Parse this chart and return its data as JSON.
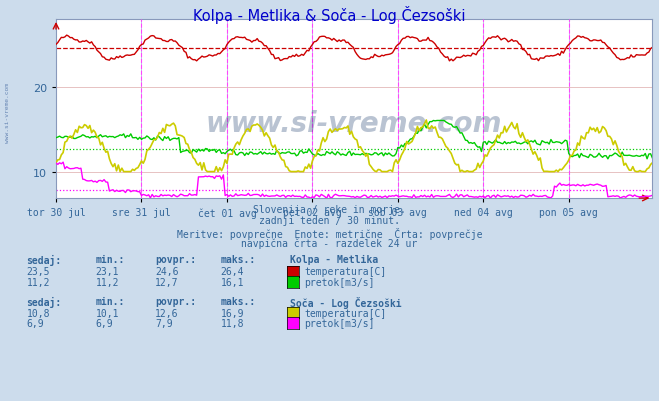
{
  "title": "Kolpa - Metlika & Soča - Log Čezsoški",
  "title_color": "#0000cc",
  "bg_color": "#ccdcec",
  "plot_bg_color": "#ffffff",
  "grid_color": "#ddaaaa",
  "grid_color2": "#aaaadd",
  "n_points": 336,
  "x_tick_labels": [
    "tor 30 jul",
    "sre 31 jul",
    "čet 01 avg",
    "pet 02 avg",
    "sob 03 avg",
    "ned 04 avg",
    "pon 05 avg"
  ],
  "x_tick_positions": [
    0,
    48,
    96,
    144,
    192,
    240,
    288
  ],
  "ylim": [
    7,
    28
  ],
  "yticks": [
    10,
    20
  ],
  "subtitle_lines": [
    "Slovenija / reke in morje.",
    "zadnji teden / 30 minut.",
    "Meritve: povprečne  Enote: metrične  Črta: povprečje",
    "navpična črta - razdelek 24 ur"
  ],
  "kolpa_temp_color": "#cc0000",
  "kolpa_temp_avg": 24.6,
  "kolpa_temp_min": 23.1,
  "kolpa_temp_max": 26.4,
  "kolpa_temp_sedaj": "23,5",
  "kolpa_pretok_color": "#00cc00",
  "kolpa_pretok_avg": 12.7,
  "kolpa_pretok_min_val": 11.2,
  "kolpa_pretok_max": 16.1,
  "kolpa_pretok_sedaj": "11,2",
  "kolpa_pretok_min_str": "11,2",
  "soca_temp_color": "#cccc00",
  "soca_temp_avg": 12.6,
  "soca_temp_min": 10.1,
  "soca_temp_max": 16.9,
  "soca_temp_sedaj": "10,8",
  "soca_pretok_color": "#ff00ff",
  "soca_pretok_avg": 7.9,
  "soca_pretok_min": 6.9,
  "soca_pretok_max": 11.8,
  "soca_pretok_sedaj": "6,9",
  "vline_color": "#ff44ff",
  "text_color": "#336699",
  "watermark": "www.si-vreme.com",
  "watermark_color": "#1a3a6a",
  "left_watermark_color": "#5577aa"
}
